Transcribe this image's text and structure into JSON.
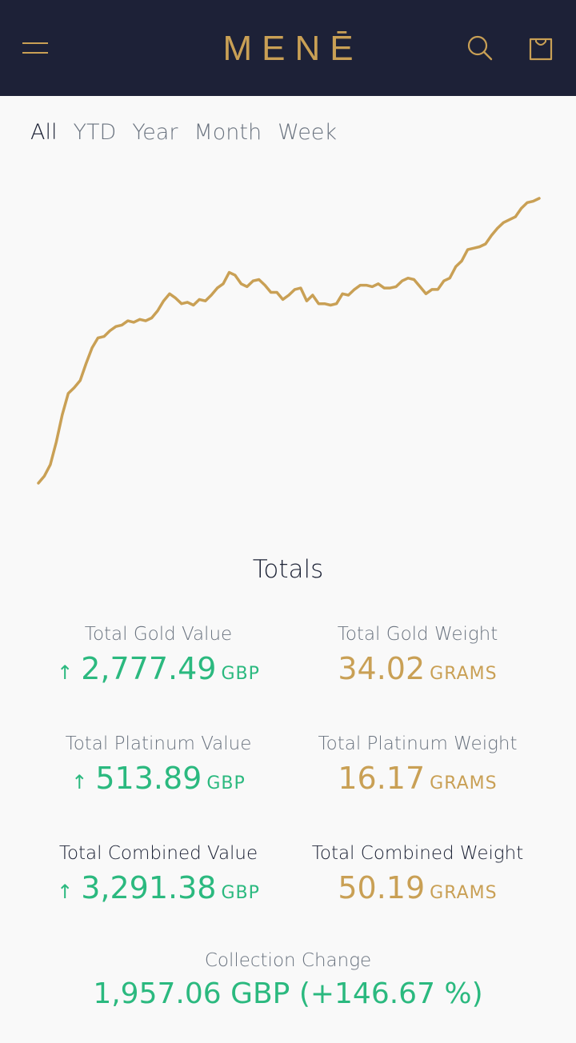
{
  "header": {
    "logo": "MENĒ",
    "menu_icon": "hamburger-menu-icon",
    "search_icon": "search-icon",
    "bag_icon": "shopping-bag-icon"
  },
  "tabs": [
    {
      "label": "All",
      "active": true
    },
    {
      "label": "YTD",
      "active": false
    },
    {
      "label": "Year",
      "active": false
    },
    {
      "label": "Month",
      "active": false
    },
    {
      "label": "Week",
      "active": false
    }
  ],
  "colors": {
    "header_bg": "#1d2137",
    "gold": "#c9a055",
    "green": "#2bb97f",
    "muted": "#6b7480",
    "background": "#f9f9f9"
  },
  "chart_data": {
    "type": "line",
    "title": "",
    "xlabel": "",
    "ylabel": "",
    "axes_visible": false,
    "grid": false,
    "series": [
      {
        "color": "#c9a055",
        "values": [
          0.0,
          2.5,
          6.5,
          14.5,
          24,
          31.5,
          33.5,
          36,
          42,
          47.5,
          51,
          51.5,
          53.5,
          55,
          55.5,
          57,
          56.5,
          57.5,
          57,
          58,
          60.5,
          64,
          66.5,
          65,
          63,
          63.5,
          62.5,
          64.5,
          64,
          66,
          68.5,
          70,
          74,
          73,
          70,
          69,
          71,
          71.5,
          69.5,
          67,
          67,
          64.5,
          66,
          68,
          68.5,
          64,
          66,
          63,
          63,
          62.5,
          63,
          66.5,
          66,
          68,
          69.5,
          69.5,
          69,
          70,
          68.5,
          68.5,
          69,
          71,
          72,
          71.5,
          69,
          66.5,
          68,
          68,
          71,
          72,
          76,
          78,
          82,
          82.5,
          83,
          84,
          87,
          89.5,
          91.5,
          92.5,
          93.5,
          96.5,
          98.5,
          99,
          100
        ]
      }
    ]
  },
  "totals": {
    "title": "Totals",
    "gold_value": {
      "label": "Total Gold Value",
      "arrow": "↑",
      "value": "2,777.49",
      "unit": "GBP"
    },
    "gold_weight": {
      "label": "Total Gold Weight",
      "value": "34.02",
      "unit": "GRAMS"
    },
    "platinum_value": {
      "label": "Total Platinum Value",
      "arrow": "↑",
      "value": "513.89",
      "unit": "GBP"
    },
    "platinum_weight": {
      "label": "Total Platinum Weight",
      "value": "16.17",
      "unit": "GRAMS"
    },
    "combined_value": {
      "label": "Total Combined Value",
      "arrow": "↑",
      "value": "3,291.38",
      "unit": "GBP"
    },
    "combined_weight": {
      "label": "Total Combined Weight",
      "value": "50.19",
      "unit": "GRAMS"
    }
  },
  "collection_change": {
    "label": "Collection Change",
    "value": "1,957.06 GBP  (+146.67 %)"
  }
}
